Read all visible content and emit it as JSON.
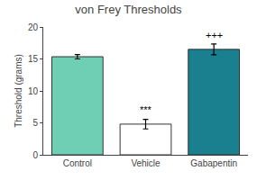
{
  "chart_data": {
    "type": "bar",
    "title": "von Frey Thresholds",
    "ylabel": "Threshold (grams)",
    "categories": [
      "Control",
      "Vehicle",
      "Gabapentin"
    ],
    "values": [
      15.35,
      4.8,
      16.5
    ],
    "errors": [
      0.35,
      0.75,
      0.85
    ],
    "colors": [
      "#6ECFB5",
      "#FFFFFF",
      "#1A7F8E"
    ],
    "ylim": [
      0,
      20
    ],
    "yticks": [
      0,
      5,
      10,
      15,
      20
    ],
    "grid": false,
    "annotations": [
      {
        "text": "***",
        "x": "Vehicle",
        "y": 5.9
      },
      {
        "text": "+++",
        "x": "Gabapentin",
        "y": 17.6
      }
    ]
  }
}
